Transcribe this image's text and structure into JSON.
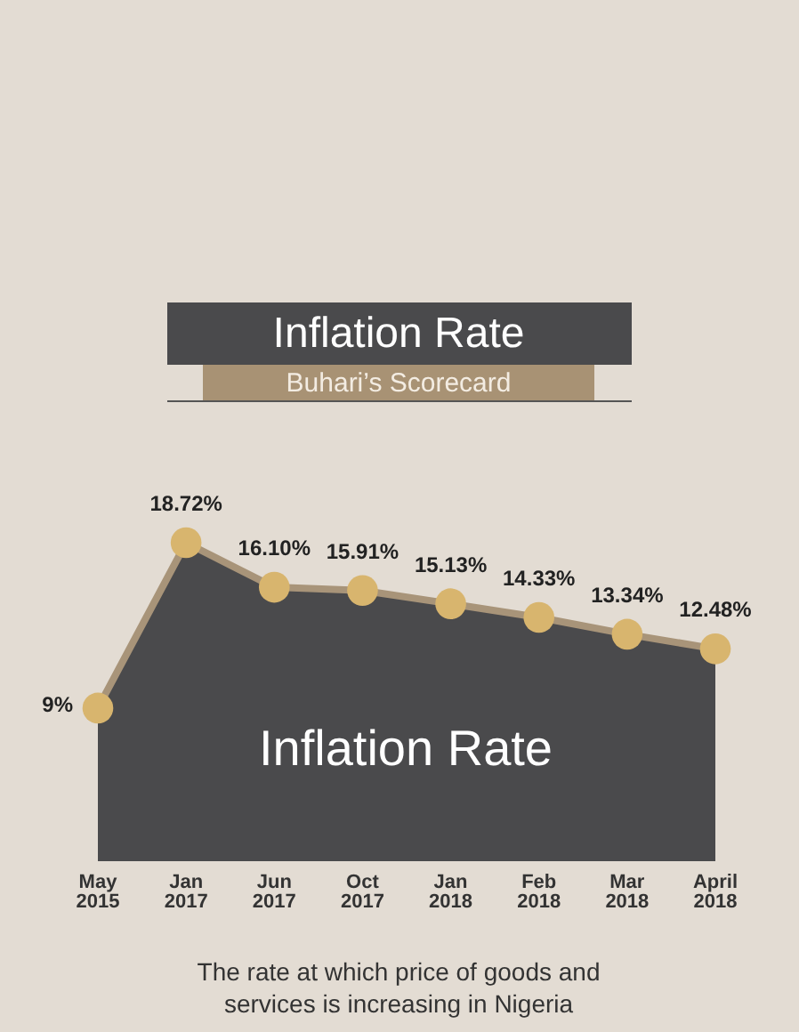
{
  "chart_data": {
    "type": "area",
    "title": "Inflation Rate",
    "subtitle": "Buhari’s Scorecard",
    "categories": [
      "May 2015",
      "Jan 2017",
      "Jun 2017",
      "Oct 2017",
      "Jan 2018",
      "Feb 2018",
      "Mar 2018",
      "April 2018"
    ],
    "series": [
      {
        "color": "#4a4a4c",
        "values": [
          9,
          18.72,
          16.1,
          15.91,
          15.13,
          14.33,
          13.34,
          12.48
        ],
        "value_labels": [
          "9%",
          "18.72%",
          "16.10%",
          "15.91%",
          "15.13%",
          "14.33%",
          "13.34%",
          "12.48%"
        ]
      }
    ],
    "marker": "circle",
    "annotations": [
      "Inflation Rate",
      "The rate at which price of goods and\nservices is increasing in Nigeria"
    ]
  }
}
